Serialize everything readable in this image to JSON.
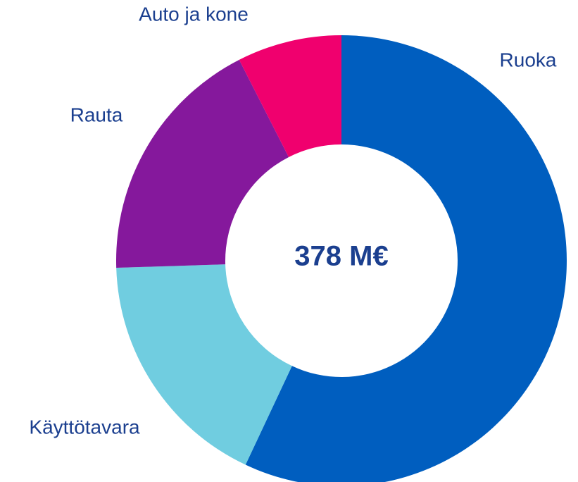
{
  "chart_data": {
    "type": "donut",
    "center_label": "378 M€",
    "categories": [
      "Ruoka",
      "Käyttötavara",
      "Rauta",
      "Auto ja kone"
    ],
    "values": [
      57,
      17.5,
      18,
      7.5
    ],
    "colors": [
      "#005ebf",
      "#70cde0",
      "#85189c",
      "#f0006e"
    ]
  }
}
